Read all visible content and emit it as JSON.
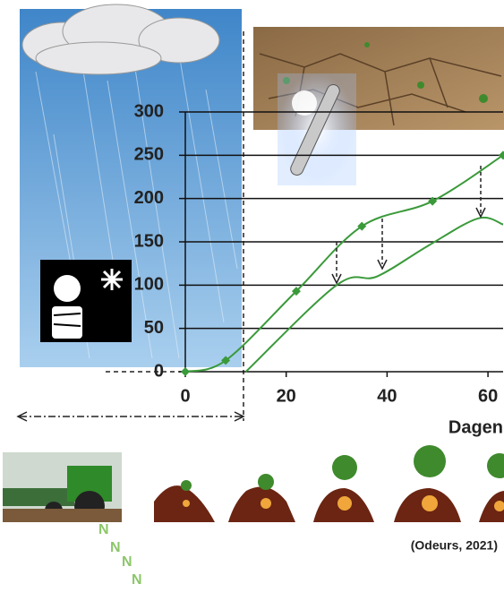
{
  "chart_data": {
    "type": "line",
    "xlabel": "Dagen",
    "source": "(Odeurs, 2021)",
    "series": [
      {
        "color": "#3a9a3a",
        "marker": "diamond",
        "x": [
          0,
          8,
          22,
          35,
          49,
          63
        ],
        "values": [
          0,
          13,
          93,
          168,
          197,
          250
        ]
      },
      {
        "color": "#3a9a3a",
        "x": [
          12,
          30,
          38,
          48,
          58,
          63
        ],
        "values": [
          0,
          100,
          110,
          145,
          177,
          170
        ]
      }
    ],
    "xlim": [
      0,
      63
    ],
    "ylim": [
      0,
      300
    ],
    "xticks": [
      0,
      20,
      40,
      60
    ],
    "yticks": [
      0,
      50,
      100,
      150,
      200,
      250,
      300
    ],
    "grid": true
  }
}
